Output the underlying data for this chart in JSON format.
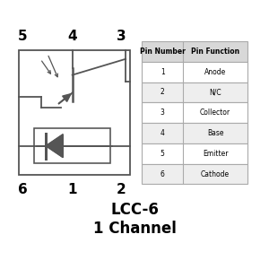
{
  "title_line1": "LCC-6",
  "title_line2": "1 Channel",
  "bg_color": "#ffffff",
  "table_header_bg": "#d8d8d8",
  "table_row_bg": "#ffffff",
  "table_alt_bg": "#eeeeee",
  "table_headers": [
    "Pin Number",
    "Pin Function"
  ],
  "table_rows": [
    [
      "1",
      "Anode"
    ],
    [
      "2",
      "N/C"
    ],
    [
      "3",
      "Collector"
    ],
    [
      "4",
      "Base"
    ],
    [
      "5",
      "Emitter"
    ],
    [
      "6",
      "Cathode"
    ]
  ],
  "line_color": "#555555",
  "text_color": "#000000",
  "pin_top": [
    [
      "5",
      0.05
    ],
    [
      "4",
      0.115
    ],
    [
      "3",
      0.175
    ]
  ],
  "pin_bot": [
    [
      "6",
      0.05
    ],
    [
      "1",
      0.115
    ],
    [
      "2",
      0.175
    ]
  ]
}
